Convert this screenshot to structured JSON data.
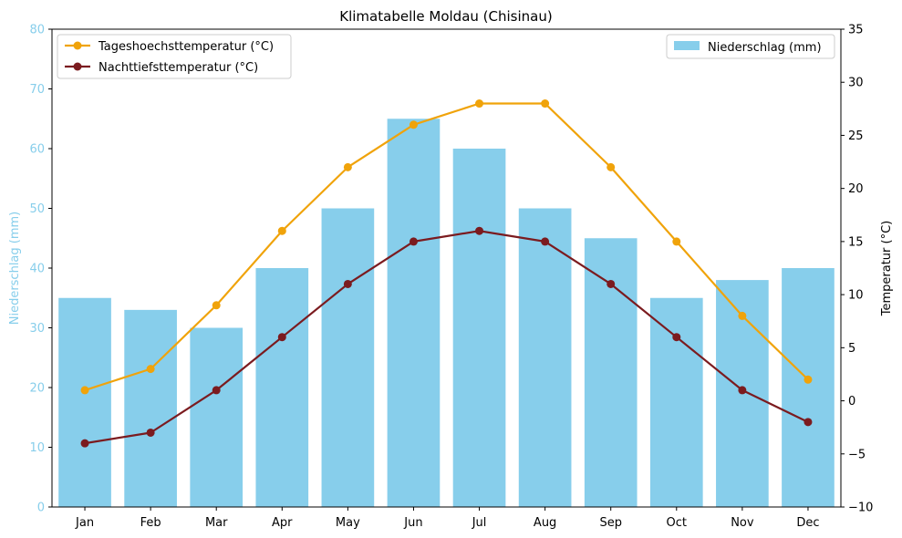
{
  "chart_data": {
    "type": "bar",
    "title": "Klimatabelle Moldau (Chisinau)",
    "categories": [
      "Jan",
      "Feb",
      "Mar",
      "Apr",
      "May",
      "Jun",
      "Jul",
      "Aug",
      "Sep",
      "Oct",
      "Nov",
      "Dec"
    ],
    "left_axis": {
      "label": "Niederschlag (mm)",
      "ylim": [
        0,
        80
      ],
      "ticks": [
        0,
        10,
        20,
        30,
        40,
        50,
        60,
        70,
        80
      ],
      "color": "#87ceeb"
    },
    "right_axis": {
      "label": "Temperatur (°C)",
      "ylim": [
        -10,
        35
      ],
      "ticks": [
        -10,
        -5,
        0,
        5,
        10,
        15,
        20,
        25,
        30,
        35
      ],
      "tick_labels": [
        "−10",
        "−5",
        "0",
        "5",
        "10",
        "15",
        "20",
        "25",
        "30",
        "35"
      ]
    },
    "bar_series": {
      "name": "Niederschlag (mm)",
      "color": "#87ceeb",
      "values": [
        35,
        33,
        30,
        40,
        50,
        65,
        60,
        50,
        45,
        35,
        38,
        40
      ]
    },
    "line_series": [
      {
        "name": "Tageshoechsttemperatur (°C)",
        "color": "#f0a30a",
        "values": [
          1,
          3,
          9,
          16,
          22,
          26,
          28,
          28,
          22,
          15,
          8,
          2
        ]
      },
      {
        "name": "Nachttiefsttemperatur (°C)",
        "color": "#7b1b1f",
        "values": [
          -4,
          -3,
          1,
          6,
          11,
          15,
          16,
          15,
          11,
          6,
          1,
          -2
        ]
      }
    ],
    "legend_left_position": "top-left",
    "legend_right_position": "top-right",
    "grid": false
  }
}
